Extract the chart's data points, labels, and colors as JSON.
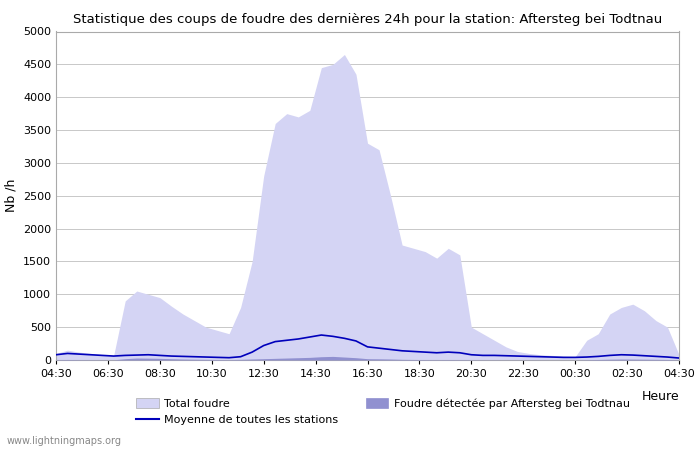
{
  "title": "Statistique des coups de foudre des dernières 24h pour la station: Aftersteg bei Todtnau",
  "xlabel": "Heure",
  "ylabel": "Nb /h",
  "xtick_labels": [
    "04:30",
    "06:30",
    "08:30",
    "10:30",
    "12:30",
    "14:30",
    "16:30",
    "18:30",
    "20:30",
    "22:30",
    "00:30",
    "02:30",
    "04:30"
  ],
  "ylim": [
    0,
    5000
  ],
  "yticks": [
    0,
    500,
    1000,
    1500,
    2000,
    2500,
    3000,
    3500,
    4000,
    4500,
    5000
  ],
  "bg_color": "#ffffff",
  "grid_color": "#c8c8c8",
  "fill_total_color": "#d4d4f4",
  "fill_detected_color": "#9090d0",
  "line_color": "#0000bb",
  "watermark": "www.lightningmaps.org",
  "total_foudre": [
    100,
    150,
    120,
    100,
    80,
    70,
    900,
    1050,
    1000,
    950,
    820,
    700,
    600,
    500,
    450,
    400,
    800,
    1500,
    2800,
    3600,
    3750,
    3700,
    3800,
    4450,
    4500,
    4650,
    4350,
    3300,
    3200,
    2500,
    1750,
    1700,
    1650,
    1550,
    1700,
    1600,
    500,
    400,
    300,
    200,
    130,
    100,
    80,
    70,
    60,
    50,
    300,
    400,
    700,
    800,
    850,
    750,
    600,
    500,
    80
  ],
  "detected_foudre": [
    5,
    8,
    6,
    5,
    4,
    3,
    20,
    30,
    28,
    25,
    20,
    15,
    12,
    10,
    8,
    6,
    10,
    15,
    20,
    25,
    30,
    35,
    40,
    50,
    55,
    45,
    35,
    20,
    18,
    15,
    10,
    8,
    7,
    6,
    7,
    6,
    5,
    4,
    4,
    3,
    3,
    3,
    3,
    2,
    2,
    2,
    5,
    8,
    12,
    15,
    14,
    12,
    10,
    8,
    3
  ],
  "moyenne_stations": [
    80,
    100,
    90,
    80,
    70,
    60,
    70,
    75,
    80,
    70,
    60,
    55,
    50,
    45,
    40,
    35,
    50,
    120,
    220,
    280,
    300,
    320,
    350,
    380,
    360,
    330,
    290,
    200,
    180,
    160,
    140,
    130,
    120,
    110,
    120,
    110,
    80,
    70,
    70,
    65,
    60,
    55,
    50,
    45,
    40,
    40,
    45,
    55,
    70,
    80,
    75,
    65,
    55,
    45,
    30
  ],
  "n_points": 55
}
